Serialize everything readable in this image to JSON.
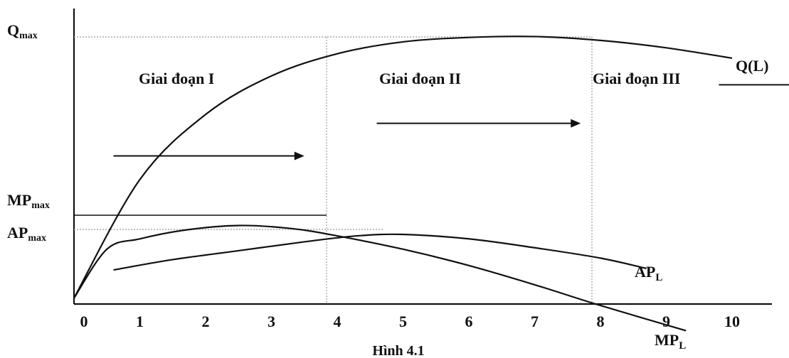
{
  "chart_data": {
    "type": "line",
    "caption": "Hình 4.1",
    "x_ticks": [
      "0",
      "1",
      "2",
      "3",
      "4",
      "5",
      "6",
      "7",
      "8",
      "9",
      "10"
    ],
    "y_labels": {
      "q_max": {
        "main": "Q",
        "sub": "max"
      },
      "mp_max": {
        "main": "MP",
        "sub": "max"
      },
      "ap_max": {
        "main": "AP",
        "sub": "max"
      }
    },
    "stages": [
      "Giai đoạn I",
      "Giai đoạn II",
      "Giai đoạn III"
    ],
    "stage_boundaries": [
      4,
      8
    ],
    "series": [
      {
        "name": "Q(L)",
        "label_main": "Q(L)",
        "label_sub": "",
        "points": [
          [
            0,
            0.2
          ],
          [
            1,
            4.2
          ],
          [
            2,
            6.4
          ],
          [
            3,
            7.7
          ],
          [
            4,
            8.45
          ],
          [
            5,
            8.85
          ],
          [
            6,
            9.0
          ],
          [
            7,
            9.03
          ],
          [
            8,
            8.9
          ],
          [
            9,
            8.65
          ],
          [
            10,
            8.3
          ]
        ]
      },
      {
        "name": "AP_L",
        "label_main": "AP",
        "label_sub": "L",
        "points": [
          [
            0.6,
            1.15
          ],
          [
            1.5,
            1.5
          ],
          [
            2.5,
            1.8
          ],
          [
            3.5,
            2.1
          ],
          [
            4.3,
            2.3
          ],
          [
            5,
            2.35
          ],
          [
            6,
            2.2
          ],
          [
            7,
            1.9
          ],
          [
            8,
            1.55
          ],
          [
            8.7,
            1.2
          ]
        ]
      },
      {
        "name": "MP_L",
        "label_main": "MP",
        "label_sub": "L",
        "points": [
          [
            0,
            0.2
          ],
          [
            0.5,
            1.85
          ],
          [
            1,
            2.2
          ],
          [
            1.7,
            2.5
          ],
          [
            2.5,
            2.65
          ],
          [
            3.3,
            2.55
          ],
          [
            4,
            2.3
          ],
          [
            5,
            1.85
          ],
          [
            6,
            1.3
          ],
          [
            7,
            0.65
          ],
          [
            8,
            -0.05
          ],
          [
            9.3,
            -0.9
          ]
        ]
      }
    ],
    "arrows": [
      {
        "from": 0.6,
        "to": 3.5,
        "y": 5.0
      },
      {
        "from": 4.6,
        "to": 7.7,
        "y": 6.1
      },
      {
        "from": 9.8,
        "to": 11.8,
        "y": 7.4
      }
    ]
  }
}
